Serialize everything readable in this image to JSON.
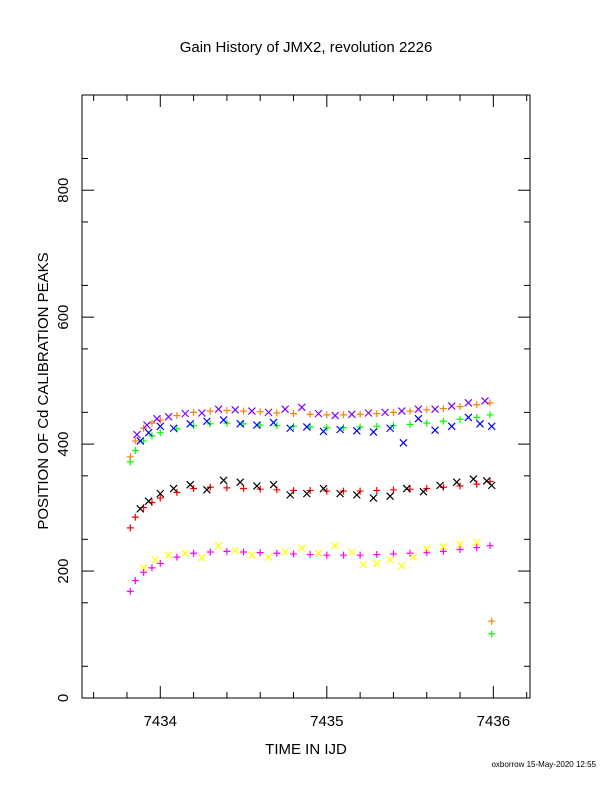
{
  "chart_data": {
    "type": "scatter",
    "title": "Gain History of JMX2, revolution 2226",
    "xlabel": "TIME IN IJD",
    "ylabel": "POSITION OF Cd CALIBRATION PEAKS",
    "xlim": [
      7433.53,
      7436.22
    ],
    "ylim": [
      0,
      950
    ],
    "x_major_ticks": [
      7434,
      7435,
      7436
    ],
    "y_major_ticks": [
      0,
      200,
      400,
      600,
      800
    ],
    "grid": false,
    "legend": "none",
    "series": [
      {
        "color": "#ff8000",
        "marker": "plus",
        "points": [
          [
            7433.82,
            380
          ],
          [
            7433.85,
            405
          ],
          [
            7433.9,
            425
          ],
          [
            7433.95,
            433
          ],
          [
            7434.0,
            438
          ],
          [
            7434.1,
            445
          ],
          [
            7434.2,
            450
          ],
          [
            7434.3,
            452
          ],
          [
            7434.4,
            453
          ],
          [
            7434.5,
            452
          ],
          [
            7434.6,
            451
          ],
          [
            7434.7,
            449
          ],
          [
            7434.8,
            448
          ],
          [
            7434.9,
            447
          ],
          [
            7435.0,
            446
          ],
          [
            7435.1,
            446
          ],
          [
            7435.2,
            447
          ],
          [
            7435.3,
            448
          ],
          [
            7435.4,
            450
          ],
          [
            7435.5,
            452
          ],
          [
            7435.6,
            454
          ],
          [
            7435.7,
            456
          ],
          [
            7435.8,
            459
          ],
          [
            7435.9,
            462
          ],
          [
            7435.98,
            465
          ],
          [
            7435.99,
            121
          ]
        ]
      },
      {
        "color": "#8000ff",
        "marker": "cross",
        "points": [
          [
            7433.86,
            415
          ],
          [
            7433.92,
            430
          ],
          [
            7433.98,
            440
          ],
          [
            7434.05,
            443
          ],
          [
            7434.15,
            448
          ],
          [
            7434.25,
            449
          ],
          [
            7434.35,
            455
          ],
          [
            7434.45,
            454
          ],
          [
            7434.55,
            452
          ],
          [
            7434.65,
            450
          ],
          [
            7434.75,
            455
          ],
          [
            7434.85,
            458
          ],
          [
            7434.95,
            448
          ],
          [
            7435.05,
            445
          ],
          [
            7435.15,
            447
          ],
          [
            7435.25,
            449
          ],
          [
            7435.35,
            450
          ],
          [
            7435.45,
            452
          ],
          [
            7435.55,
            455
          ],
          [
            7435.65,
            455
          ],
          [
            7435.75,
            460
          ],
          [
            7435.85,
            465
          ],
          [
            7435.95,
            468
          ]
        ]
      },
      {
        "color": "#00ff00",
        "marker": "plus",
        "points": [
          [
            7433.82,
            372
          ],
          [
            7433.85,
            390
          ],
          [
            7433.9,
            405
          ],
          [
            7433.95,
            413
          ],
          [
            7434.0,
            418
          ],
          [
            7434.1,
            424
          ],
          [
            7434.2,
            429
          ],
          [
            7434.3,
            432
          ],
          [
            7434.4,
            433
          ],
          [
            7434.5,
            432
          ],
          [
            7434.6,
            430
          ],
          [
            7434.7,
            429
          ],
          [
            7434.8,
            428
          ],
          [
            7434.9,
            427
          ],
          [
            7435.0,
            426
          ],
          [
            7435.1,
            426
          ],
          [
            7435.2,
            427
          ],
          [
            7435.3,
            428
          ],
          [
            7435.4,
            429
          ],
          [
            7435.5,
            431
          ],
          [
            7435.6,
            433
          ],
          [
            7435.7,
            436
          ],
          [
            7435.8,
            439
          ],
          [
            7435.9,
            442
          ],
          [
            7435.98,
            446
          ],
          [
            7435.99,
            101
          ]
        ]
      },
      {
        "color": "#0000ff",
        "marker": "cross",
        "points": [
          [
            7433.88,
            405
          ],
          [
            7433.93,
            418
          ],
          [
            7434.0,
            428
          ],
          [
            7434.08,
            425
          ],
          [
            7434.18,
            432
          ],
          [
            7434.28,
            436
          ],
          [
            7434.38,
            438
          ],
          [
            7434.48,
            432
          ],
          [
            7434.58,
            430
          ],
          [
            7434.68,
            434
          ],
          [
            7434.78,
            425
          ],
          [
            7434.88,
            427
          ],
          [
            7434.98,
            420
          ],
          [
            7435.08,
            423
          ],
          [
            7435.18,
            421
          ],
          [
            7435.28,
            419
          ],
          [
            7435.38,
            425
          ],
          [
            7435.46,
            402
          ],
          [
            7435.55,
            440
          ],
          [
            7435.65,
            422
          ],
          [
            7435.75,
            428
          ],
          [
            7435.85,
            442
          ],
          [
            7435.92,
            432
          ],
          [
            7435.99,
            428
          ]
        ]
      },
      {
        "color": "#ff0000",
        "marker": "plus",
        "points": [
          [
            7433.82,
            268
          ],
          [
            7433.85,
            285
          ],
          [
            7433.9,
            300
          ],
          [
            7433.95,
            308
          ],
          [
            7434.0,
            315
          ],
          [
            7434.1,
            324
          ],
          [
            7434.2,
            330
          ],
          [
            7434.3,
            332
          ],
          [
            7434.4,
            331
          ],
          [
            7434.5,
            330
          ],
          [
            7434.6,
            329
          ],
          [
            7434.7,
            328
          ],
          [
            7434.8,
            327
          ],
          [
            7434.9,
            327
          ],
          [
            7435.0,
            326
          ],
          [
            7435.1,
            326
          ],
          [
            7435.2,
            326
          ],
          [
            7435.3,
            327
          ],
          [
            7435.4,
            328
          ],
          [
            7435.5,
            329
          ],
          [
            7435.6,
            330
          ],
          [
            7435.7,
            332
          ],
          [
            7435.8,
            334
          ],
          [
            7435.9,
            337
          ],
          [
            7435.98,
            341
          ]
        ]
      },
      {
        "color": "#000000",
        "marker": "cross",
        "points": [
          [
            7433.88,
            298
          ],
          [
            7433.93,
            310
          ],
          [
            7434.0,
            322
          ],
          [
            7434.08,
            330
          ],
          [
            7434.18,
            336
          ],
          [
            7434.28,
            328
          ],
          [
            7434.38,
            343
          ],
          [
            7434.48,
            340
          ],
          [
            7434.58,
            334
          ],
          [
            7434.68,
            336
          ],
          [
            7434.78,
            320
          ],
          [
            7434.88,
            322
          ],
          [
            7434.98,
            330
          ],
          [
            7435.08,
            322
          ],
          [
            7435.18,
            320
          ],
          [
            7435.28,
            315
          ],
          [
            7435.38,
            318
          ],
          [
            7435.48,
            330
          ],
          [
            7435.58,
            325
          ],
          [
            7435.68,
            335
          ],
          [
            7435.78,
            340
          ],
          [
            7435.88,
            345
          ],
          [
            7435.96,
            342
          ],
          [
            7435.99,
            335
          ]
        ]
      },
      {
        "color": "#ff00ff",
        "marker": "plus",
        "points": [
          [
            7433.82,
            168
          ],
          [
            7433.85,
            185
          ],
          [
            7433.9,
            198
          ],
          [
            7433.95,
            205
          ],
          [
            7434.0,
            212
          ],
          [
            7434.1,
            222
          ],
          [
            7434.2,
            228
          ],
          [
            7434.3,
            230
          ],
          [
            7434.4,
            231
          ],
          [
            7434.5,
            230
          ],
          [
            7434.6,
            229
          ],
          [
            7434.7,
            228
          ],
          [
            7434.8,
            227
          ],
          [
            7434.9,
            226
          ],
          [
            7435.0,
            225
          ],
          [
            7435.1,
            225
          ],
          [
            7435.2,
            225
          ],
          [
            7435.3,
            226
          ],
          [
            7435.4,
            227
          ],
          [
            7435.5,
            228
          ],
          [
            7435.6,
            229
          ],
          [
            7435.7,
            231
          ],
          [
            7435.8,
            234
          ],
          [
            7435.9,
            237
          ],
          [
            7435.98,
            240
          ]
        ]
      },
      {
        "color": "#ffff00",
        "marker": "cross",
        "points": [
          [
            7433.9,
            205
          ],
          [
            7433.97,
            218
          ],
          [
            7434.05,
            225
          ],
          [
            7434.15,
            228
          ],
          [
            7434.25,
            221
          ],
          [
            7434.35,
            240
          ],
          [
            7434.45,
            232
          ],
          [
            7434.55,
            225
          ],
          [
            7434.65,
            222
          ],
          [
            7434.75,
            230
          ],
          [
            7434.85,
            236
          ],
          [
            7434.95,
            228
          ],
          [
            7435.05,
            240
          ],
          [
            7435.15,
            230
          ],
          [
            7435.22,
            210
          ],
          [
            7435.3,
            212
          ],
          [
            7435.38,
            218
          ],
          [
            7435.45,
            208
          ],
          [
            7435.52,
            222
          ],
          [
            7435.6,
            235
          ],
          [
            7435.7,
            238
          ],
          [
            7435.8,
            242
          ],
          [
            7435.9,
            245
          ]
        ]
      }
    ]
  },
  "footer": {
    "credit": "oxborrow 15-May-2020 12:55"
  }
}
